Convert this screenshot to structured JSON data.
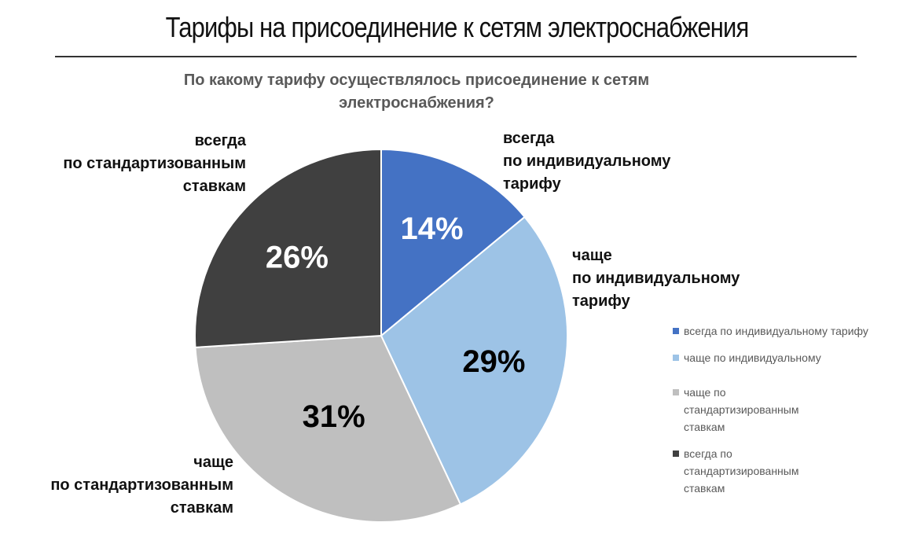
{
  "header": {
    "title": "Тарифы на присоединение к сетям электроснабжения"
  },
  "chart_data": {
    "type": "pie",
    "title": "По какому тарифу осуществлялось присоединение к сетям электроснабжения?",
    "categories": [
      "всегда по индивидуальному тарифу",
      "чаще по индивидуальному",
      "чаще по стандартизированным ставкам",
      "всегда по стандартизированным ставкам"
    ],
    "values": [
      14,
      29,
      31,
      26
    ],
    "value_labels": [
      "14%",
      "29%",
      "31%",
      "26%"
    ],
    "colors": [
      "#4472C4",
      "#9DC3E6",
      "#BFBFBF",
      "#404040"
    ],
    "label_colors": [
      "#ffffff",
      "#000000",
      "#000000",
      "#ffffff"
    ],
    "outer_labels": [
      [
        "всегда",
        "по индивидуальному",
        "тарифу"
      ],
      [
        "чаще",
        "по индивидуальному",
        "тарифу"
      ],
      [
        "чаще",
        "по стандартизованным",
        "ставкам"
      ],
      [
        "всегда",
        "по стандартизованным",
        "ставкам"
      ]
    ],
    "legend": {
      "position": "right",
      "items": [
        "всегда по индивидуальному тарифу",
        "чаще по индивидуальному",
        "чаще по стандартизированным ставкам",
        "всегда по стандартизированным ставкам"
      ]
    }
  }
}
